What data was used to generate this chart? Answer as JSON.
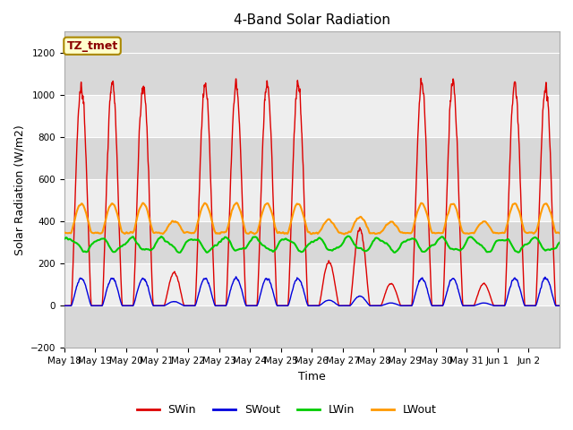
{
  "title": "4-Band Solar Radiation",
  "xlabel": "Time",
  "ylabel": "Solar Radiation (W/m2)",
  "annotation": "TZ_tmet",
  "ylim": [
    -200,
    1300
  ],
  "yticks": [
    -200,
    0,
    200,
    400,
    600,
    800,
    1000,
    1200
  ],
  "legend": [
    "SWin",
    "SWout",
    "LWin",
    "LWout"
  ],
  "colors": {
    "SWin": "#dd0000",
    "SWout": "#0000dd",
    "LWin": "#00cc00",
    "LWout": "#ff9900"
  },
  "background_color": "#ffffff",
  "band_colors": [
    "#d8d8d8",
    "#eeeeee"
  ],
  "n_days": 16,
  "pts_per_day": 144,
  "start_day": 18,
  "SWin_peak": 1050,
  "SWout_peak": 130,
  "LWin_base": 290,
  "LWin_amp": 30,
  "LWout_base": 345,
  "LWout_day_boost": 140,
  "xticklabels": [
    "May 18",
    "May 19",
    "May 20",
    "May 21",
    "May 22",
    "May 23",
    "May 24",
    "May 25",
    "May 26",
    "May 27",
    "May 28",
    "May 29",
    "May 30",
    "May 31",
    "Jun 1",
    "Jun 2"
  ]
}
